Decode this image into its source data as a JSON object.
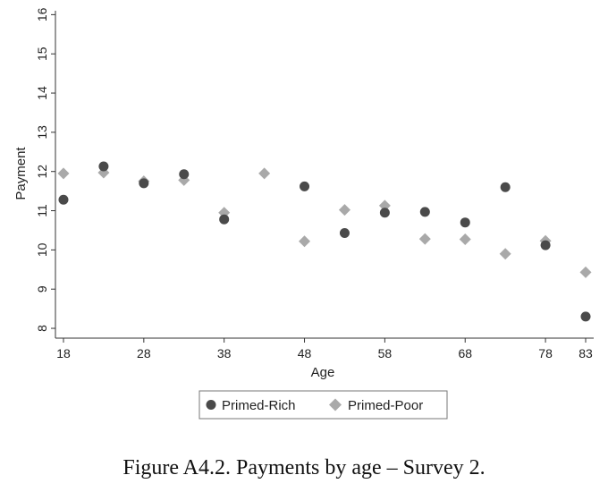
{
  "chart_data": {
    "type": "scatter",
    "xlabel": "Age",
    "ylabel": "Payment",
    "xticks": [
      18,
      28,
      38,
      48,
      58,
      68,
      78,
      83
    ],
    "yticks": [
      8,
      9,
      10,
      11,
      12,
      13,
      14,
      15,
      16
    ],
    "xlim": [
      17,
      84
    ],
    "ylim": [
      7.75,
      16.1
    ],
    "grid": false,
    "legend_position": "bottom",
    "series": [
      {
        "name": "Primed-Rich",
        "marker": "circle",
        "color": "#4a4a4a",
        "points": [
          {
            "x": 18,
            "y": 11.28
          },
          {
            "x": 23,
            "y": 12.13
          },
          {
            "x": 28,
            "y": 11.7
          },
          {
            "x": 33,
            "y": 11.93
          },
          {
            "x": 38,
            "y": 10.78
          },
          {
            "x": 48,
            "y": 11.62
          },
          {
            "x": 53,
            "y": 10.43
          },
          {
            "x": 58,
            "y": 10.95
          },
          {
            "x": 63,
            "y": 10.97
          },
          {
            "x": 68,
            "y": 10.7
          },
          {
            "x": 73,
            "y": 11.6
          },
          {
            "x": 78,
            "y": 10.12
          },
          {
            "x": 83,
            "y": 8.3
          }
        ]
      },
      {
        "name": "Primed-Poor",
        "marker": "diamond",
        "color": "#a9a9a9",
        "points": [
          {
            "x": 18,
            "y": 11.95
          },
          {
            "x": 23,
            "y": 11.97
          },
          {
            "x": 28,
            "y": 11.75
          },
          {
            "x": 33,
            "y": 11.78
          },
          {
            "x": 38,
            "y": 10.95
          },
          {
            "x": 43,
            "y": 11.95
          },
          {
            "x": 48,
            "y": 10.22
          },
          {
            "x": 53,
            "y": 11.02
          },
          {
            "x": 58,
            "y": 11.13
          },
          {
            "x": 63,
            "y": 10.28
          },
          {
            "x": 68,
            "y": 10.27
          },
          {
            "x": 73,
            "y": 9.9
          },
          {
            "x": 78,
            "y": 10.23
          },
          {
            "x": 83,
            "y": 9.43
          }
        ]
      }
    ]
  },
  "caption": "Figure A4.2. Payments by age – Survey 2."
}
